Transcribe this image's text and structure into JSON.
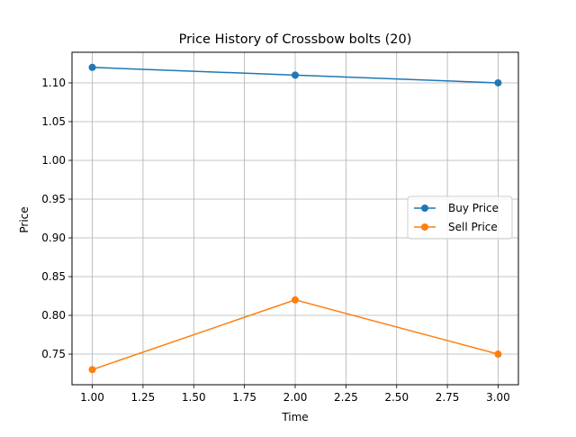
{
  "chart_data": {
    "type": "line",
    "title": "Price History of Crossbow bolts (20)",
    "xlabel": "Time",
    "ylabel": "Price",
    "x": [
      1.0,
      2.0,
      3.0
    ],
    "series": [
      {
        "name": "Buy Price",
        "values": [
          1.12,
          1.11,
          1.1
        ],
        "color": "#1f77b4",
        "marker": "circle"
      },
      {
        "name": "Sell Price",
        "values": [
          0.73,
          0.82,
          0.75
        ],
        "color": "#ff7f0e",
        "marker": "circle"
      }
    ],
    "xlim": [
      0.9,
      3.1
    ],
    "ylim": [
      0.7105,
      1.1395
    ],
    "xticks": [
      "1.00",
      "1.25",
      "1.50",
      "1.75",
      "2.00",
      "2.25",
      "2.50",
      "2.75",
      "3.00"
    ],
    "yticks": [
      "0.75",
      "0.80",
      "0.85",
      "0.90",
      "0.95",
      "1.00",
      "1.05",
      "1.10"
    ],
    "grid": true,
    "legend_position": "center-right"
  }
}
